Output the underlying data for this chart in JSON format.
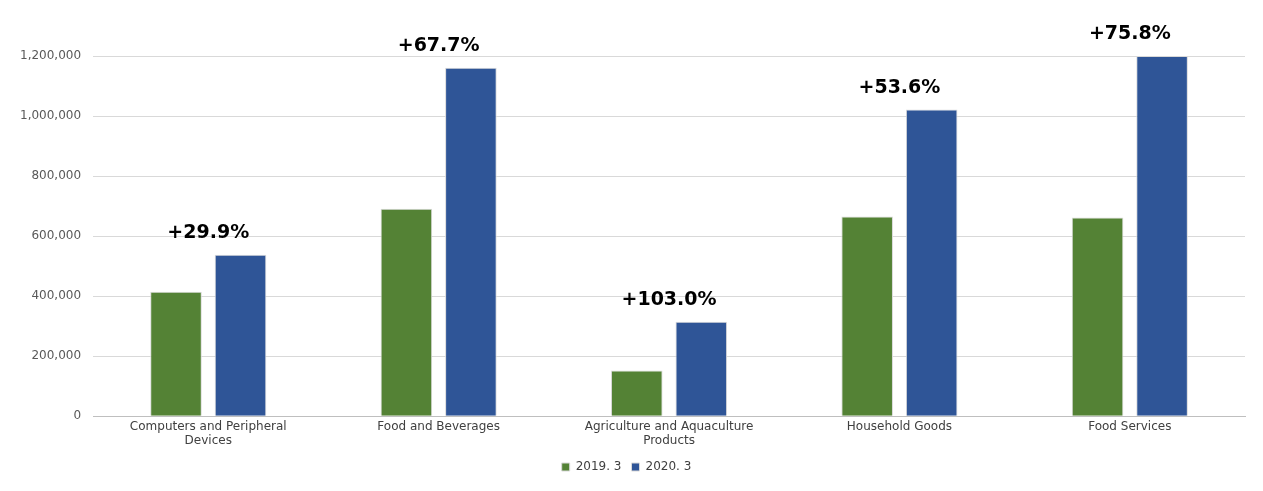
{
  "chart_data": {
    "type": "bar",
    "categories": [
      "Computers and Peripheral Devices",
      "Food and Beverages",
      "Agriculture and Aquaculture Products",
      "Household Goods",
      "Food Services"
    ],
    "series": [
      {
        "name": "2019. 3",
        "color": "#548235",
        "values": [
          415000,
          691000,
          152000,
          665000,
          662000
        ]
      },
      {
        "name": "2020. 3",
        "color": "#2f5597",
        "values": [
          538000,
          1161000,
          315000,
          1022000,
          1200000
        ]
      }
    ],
    "ylim": [
      0,
      1200000
    ],
    "yticks": [
      0,
      {
        "value": 200000,
        "label": "200,000"
      },
      {
        "value": 400000,
        "label": "400,000"
      },
      {
        "value": 600000,
        "label": "600,000"
      },
      {
        "value": 800000,
        "label": "800,000"
      },
      {
        "value": 1000000,
        "label": "1,000,000"
      },
      {
        "value": 1200000,
        "label": "1,200,000"
      }
    ],
    "grid": "y",
    "legend": "bottom",
    "annotations": [
      "+29.9%",
      "+67.7%",
      "+103.0%",
      "+53.6%",
      "+75.8%"
    ]
  }
}
